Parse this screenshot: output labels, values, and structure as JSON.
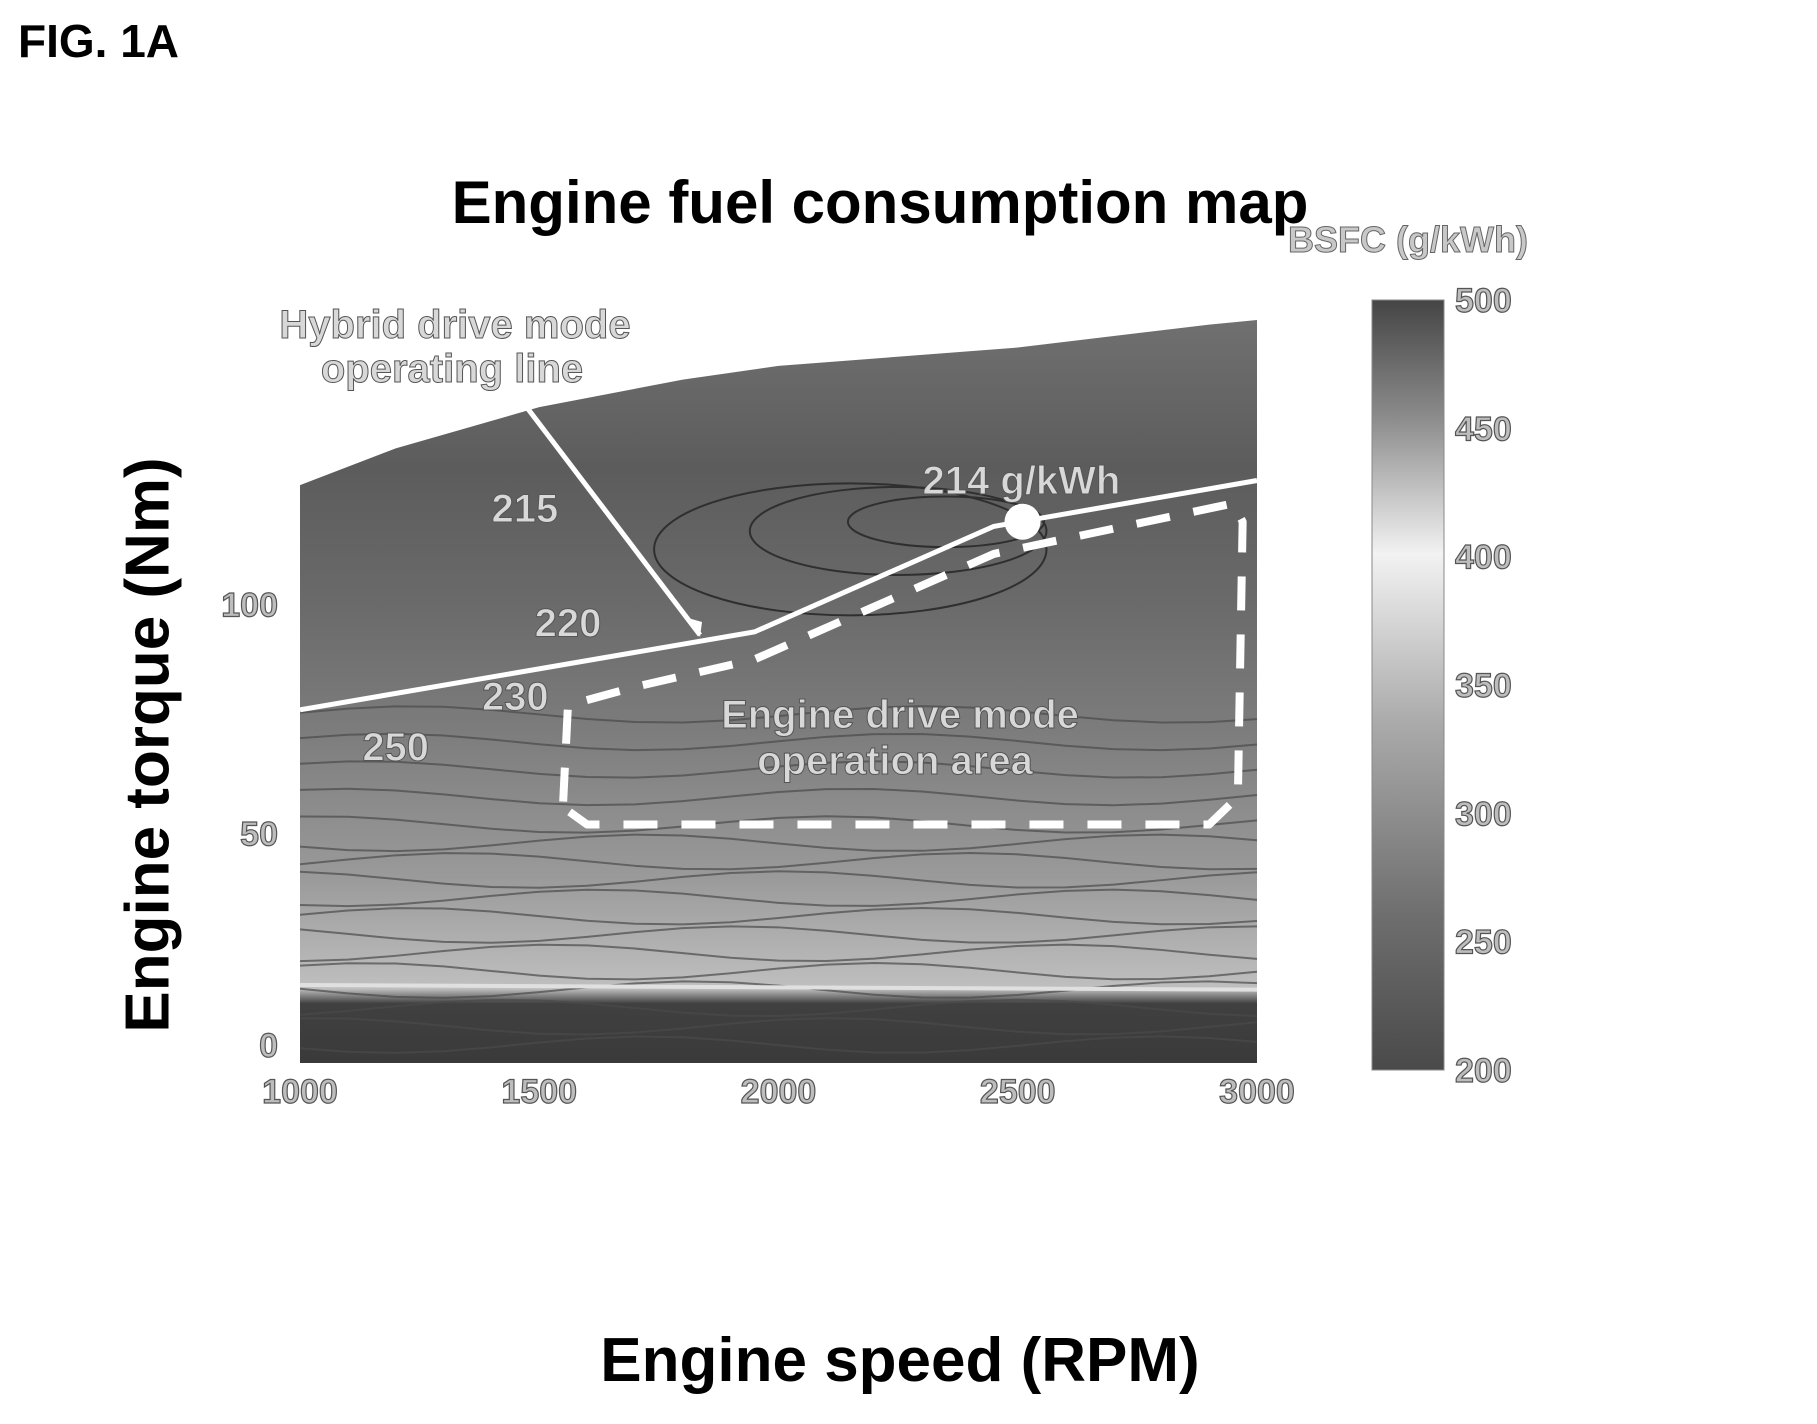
{
  "figure_label": "FIG. 1A",
  "chart_data": {
    "type": "heatmap",
    "title": "Engine fuel consumption map",
    "xlabel": "Engine speed (RPM)",
    "ylabel": "Engine torque (Nm)",
    "xlim": [
      1000,
      3000
    ],
    "ylim": [
      0,
      140
    ],
    "x_ticks": [
      1000,
      1500,
      2000,
      2500,
      3000
    ],
    "y_ticks": [
      0,
      50,
      100
    ],
    "colorbar": {
      "title": "BSFC (g/kWh)",
      "range": [
        200,
        500
      ],
      "ticks": [
        500,
        450,
        400,
        350,
        300,
        250,
        200
      ]
    },
    "max_torque_curve": {
      "x": [
        1000,
        1200,
        1500,
        1800,
        2000,
        2500,
        2900,
        3000
      ],
      "y": [
        126,
        134,
        143,
        149,
        152,
        156,
        161,
        162
      ]
    },
    "contour_labels": [
      {
        "text": "215",
        "x": 1470,
        "y": 118
      },
      {
        "text": "220",
        "x": 1560,
        "y": 93
      },
      {
        "text": "230",
        "x": 1450,
        "y": 77
      },
      {
        "text": "250",
        "x": 1200,
        "y": 66
      }
    ],
    "optimal_point": {
      "label": "214 g/kWh",
      "x": 2510,
      "y": 118
    },
    "hybrid_operating_line": {
      "label_line1": "Hybrid drive mode",
      "label_line2": "operating line",
      "x": [
        1000,
        1950,
        2450,
        3000
      ],
      "y": [
        77,
        94,
        117,
        127
      ]
    },
    "engine_drive_area": {
      "label_line1": "Engine drive mode",
      "label_line2": "operation area",
      "x": [
        1550,
        1560,
        1700,
        1950,
        2450,
        2950,
        2970,
        2960,
        2900,
        1600,
        1560,
        1550
      ],
      "y": [
        57,
        78,
        82,
        88,
        111,
        122,
        118,
        58,
        52,
        52,
        55,
        57
      ]
    }
  }
}
